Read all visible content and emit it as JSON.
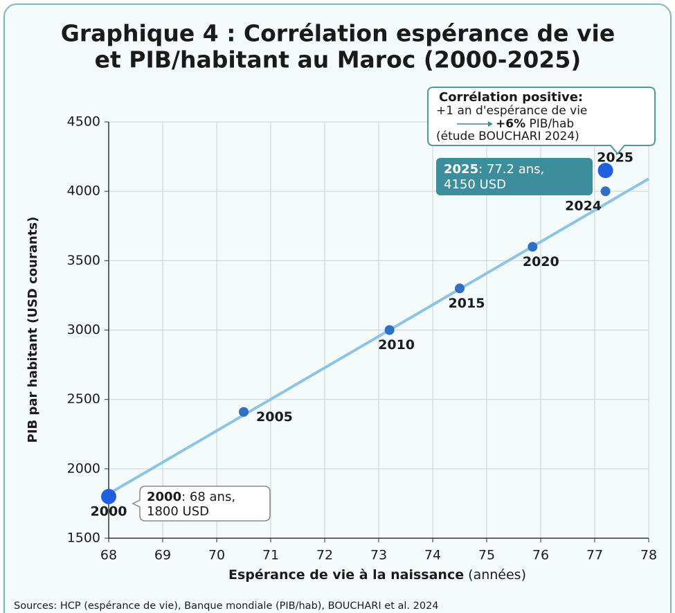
{
  "chart_data": {
    "type": "scatter",
    "title": [
      "Graphique 4 : Corrélation espérance de vie",
      "et PIB/habitant au Maroc (2000-2025)"
    ],
    "x_label": {
      "bold": "Espérance de vie à la naissance",
      "normal": "(années)"
    },
    "y_label": "PIB par habitant (USD courants)",
    "source": "Sources: HCP (espérance de vie), Banque mondiale (PIB/hab), BOUCHARI et al. 2024",
    "xlim": [
      68,
      78
    ],
    "ylim": [
      1500,
      4500
    ],
    "xticks": [
      68,
      69,
      70,
      71,
      72,
      73,
      74,
      75,
      76,
      77,
      78
    ],
    "yticks": [
      1500,
      2000,
      2500,
      3000,
      3500,
      4000,
      4500
    ],
    "grid": true,
    "series": [
      {
        "x": [
          68,
          70.5,
          73.2,
          74.5,
          75.85,
          77.2,
          77.2
        ],
        "values": [
          1800,
          2410,
          3000,
          3300,
          3600,
          4000,
          4150
        ],
        "point_labels": [
          "2000",
          "2005",
          "2010",
          "2015",
          "2020",
          "2024",
          "2025"
        ],
        "point_colors": [
          "#1f5fe0",
          "#2f6fc4",
          "#2f6fc4",
          "#2f6fc4",
          "#2f6fc4",
          "#2f6fc4",
          "#1f5fe0"
        ],
        "highlight": [
          true,
          false,
          false,
          false,
          false,
          false,
          true
        ]
      }
    ],
    "trend": {
      "color": "#8cc4e6",
      "x": [
        68,
        78
      ],
      "values": [
        1820,
        4090
      ]
    },
    "annotations": {
      "correlation": {
        "title": "Corrélation positive:",
        "line1": "+1 an d'espérance de vie",
        "bold": "+6%",
        "rest": "PIB/hab",
        "line3": "(étude BOUCHARI 2024)"
      },
      "point_2025": {
        "bold": "2025",
        "rest": ": 77.2 ans,",
        "line2": "4150 USD"
      },
      "point_2000": {
        "bold": "2000",
        "rest": ": 68 ans,",
        "line2": "1800 USD"
      }
    }
  }
}
